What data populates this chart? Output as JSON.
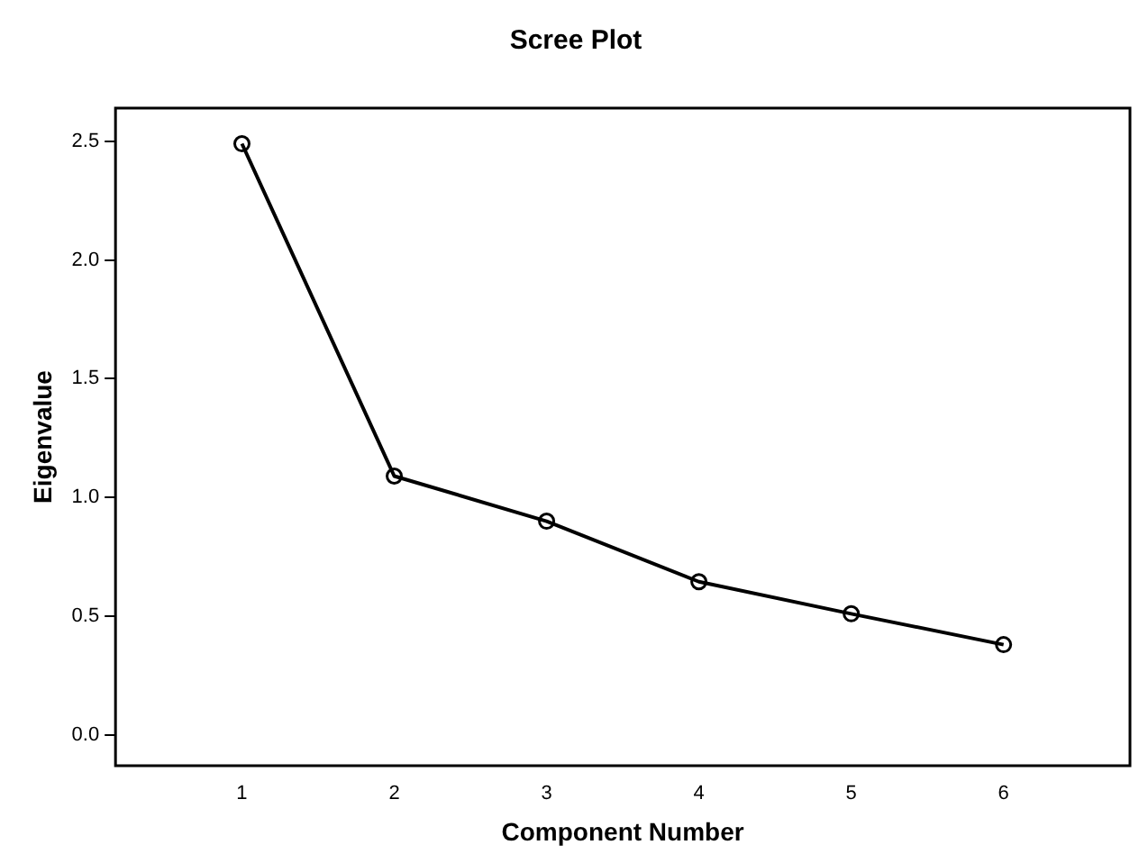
{
  "chart_data": {
    "type": "line",
    "title": "Scree Plot",
    "xlabel": "Component Number",
    "ylabel": "Eigenvalue",
    "x": [
      1,
      2,
      3,
      4,
      5,
      6
    ],
    "series": [
      {
        "color": "#000000",
        "values": [
          2.49,
          1.09,
          0.9,
          0.645,
          0.51,
          0.38
        ]
      }
    ],
    "xlim": [
      0.17,
      6.83
    ],
    "xticks": [
      1,
      2,
      3,
      4,
      5,
      6
    ],
    "ylim": [
      -0.13,
      2.64
    ],
    "yticks": [
      {
        "value": 0,
        "label": "0.0"
      },
      {
        "value": 0.5,
        "label": "0.5"
      },
      {
        "value": 1,
        "label": "1.0"
      },
      {
        "value": 1.5,
        "label": "1.5"
      },
      {
        "value": 2,
        "label": "2.0"
      },
      {
        "value": 2.5,
        "label": "2.5"
      }
    ],
    "grid": false,
    "legend": false,
    "marker": "circle",
    "line_style": "solid"
  }
}
